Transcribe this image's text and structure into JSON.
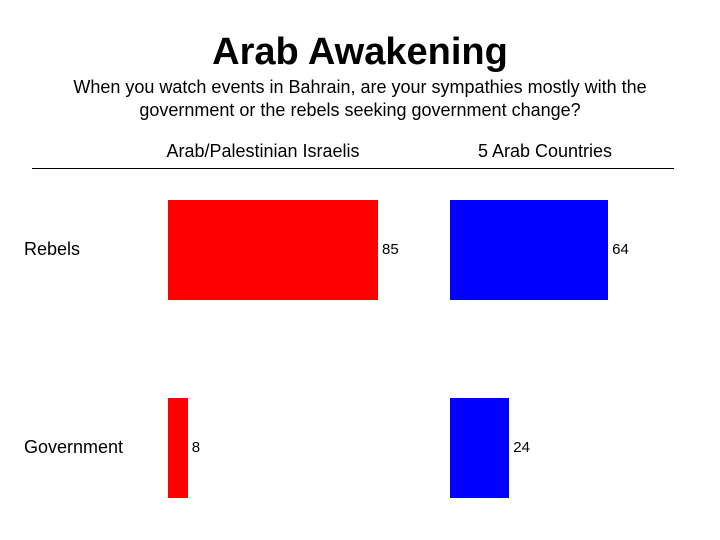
{
  "chart_data": {
    "type": "bar",
    "orientation": "horizontal",
    "title": "Arab Awakening",
    "subtitle": "When you watch events in Bahrain, are your sympathies mostly with the government or the rebels seeking government change?",
    "categories": [
      "Rebels",
      "Government"
    ],
    "series": [
      {
        "name": "Arab/Palestinian Israelis",
        "values": [
          85,
          8
        ],
        "color": "#ff0000"
      },
      {
        "name": "5 Arab Countries",
        "values": [
          64,
          24
        ],
        "color": "#0000ff"
      }
    ],
    "xlim": [
      0,
      100
    ],
    "grid": false,
    "legend": "top (column headers)"
  }
}
